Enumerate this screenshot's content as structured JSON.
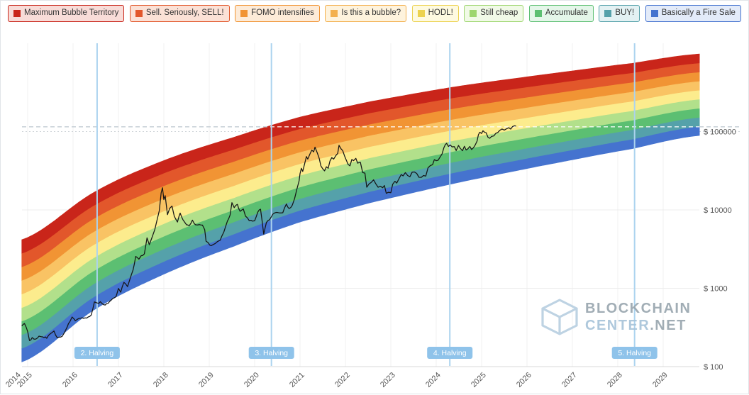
{
  "page": {
    "background": "#ffffff",
    "border_color": "#e1e4e8"
  },
  "legend": {
    "items": [
      {
        "id": "maximum-bubble-territory",
        "label": "Maximum Bubble Territory",
        "color": "#c9251a",
        "bg": "#f8dcd8"
      },
      {
        "id": "sell-seriously-sell",
        "label": "Sell. Seriously, SELL!",
        "color": "#e2572b",
        "bg": "#fbe1d6"
      },
      {
        "id": "fomo-intensifies",
        "label": "FOMO intensifies",
        "color": "#f19434",
        "bg": "#fdebd8"
      },
      {
        "id": "is-this-a-bubble",
        "label": "Is this a bubble?",
        "color": "#f3b04e",
        "bg": "#fef3dd"
      },
      {
        "id": "hodl",
        "label": "HODL!",
        "color": "#ecd24f",
        "bg": "#fefae0"
      },
      {
        "id": "still-cheap",
        "label": "Still cheap",
        "color": "#9ed66f",
        "bg": "#f1fae7"
      },
      {
        "id": "accumulate",
        "label": "Accumulate",
        "color": "#5cbf72",
        "bg": "#e4f6e9"
      },
      {
        "id": "buy",
        "label": "BUY!",
        "color": "#55a1aa",
        "bg": "#e3f1f3"
      },
      {
        "id": "basically-a-fire-sale",
        "label": "Basically a Fire Sale",
        "color": "#4573cf",
        "bg": "#e3ebf9"
      }
    ]
  },
  "axes": {
    "y_ticks": [
      {
        "label": "$ 100000",
        "value": 100000
      },
      {
        "label": "$ 10000",
        "value": 10000
      },
      {
        "label": "$ 1000",
        "value": 1000
      },
      {
        "label": "$ 100",
        "value": 100
      }
    ],
    "x_ticks": [
      {
        "label": "2014",
        "year": 2014.75
      },
      {
        "label": "2015",
        "year": 2015
      },
      {
        "label": "2016",
        "year": 2016
      },
      {
        "label": "2017",
        "year": 2017
      },
      {
        "label": "2018",
        "year": 2018
      },
      {
        "label": "2019",
        "year": 2019
      },
      {
        "label": "2020",
        "year": 2020
      },
      {
        "label": "2021",
        "year": 2021
      },
      {
        "label": "2022",
        "year": 2022
      },
      {
        "label": "2023",
        "year": 2023
      },
      {
        "label": "2024",
        "year": 2024
      },
      {
        "label": "2025",
        "year": 2025
      },
      {
        "label": "2026",
        "year": 2026
      },
      {
        "label": "2027",
        "year": 2027
      },
      {
        "label": "2028",
        "year": 2028
      },
      {
        "label": "2029",
        "year": 2029
      }
    ]
  },
  "halvings": [
    {
      "label": "2. Halving",
      "year": 2016.53
    },
    {
      "label": "3. Halving",
      "year": 2020.37
    },
    {
      "label": "4. Halving",
      "year": 2024.3
    },
    {
      "label": "5. Halving",
      "year": 2028.37
    }
  ],
  "halving_style": {
    "line_color": "#abd3ef",
    "badge_bg": "#8fc3ea",
    "badge_text_color": "#ffffff"
  },
  "watermark": {
    "line1": "BLOCKCHAIN",
    "line2_strong": "CENTER",
    "line2_suffix": ".NET"
  },
  "chart_data": {
    "type": "area",
    "y_axis": {
      "scale": "log",
      "ticks_usd": [
        100,
        1000,
        10000,
        100000
      ]
    },
    "x_domain_years": [
      2014.87,
      2029.8
    ],
    "dashed_reference_line_usd": 115000,
    "halving_years": [
      2016.53,
      2020.37,
      2024.3,
      2028.37
    ],
    "bands": {
      "count": 9,
      "labels_bottom_to_top": [
        "Basically a Fire Sale",
        "BUY!",
        "Accumulate",
        "Still cheap",
        "HODL!",
        "Is this a bubble?",
        "FOMO intensifies",
        "Sell. Seriously, SELL!",
        "Maximum Bubble Territory"
      ],
      "colors_bottom_to_top": [
        "#4573cf",
        "#55a1aa",
        "#5cbf72",
        "#b2e08b",
        "#fcec8d",
        "#f9c364",
        "#f19434",
        "#e2572b",
        "#c9251a"
      ],
      "upper_boundary_log10_usd": [
        [
          2014.87,
          3.62
        ],
        [
          2016.48,
          4.23
        ],
        [
          2018.0,
          4.63
        ],
        [
          2019.56,
          4.93
        ],
        [
          2020.97,
          5.18
        ],
        [
          2022.53,
          5.38
        ],
        [
          2024.41,
          5.57
        ],
        [
          2026.28,
          5.72
        ],
        [
          2028.31,
          5.87
        ],
        [
          2029.8,
          5.99
        ]
      ],
      "lower_boundary_log10_usd": [
        [
          2014.87,
          2.06
        ],
        [
          2016.48,
          2.73
        ],
        [
          2018.0,
          3.18
        ],
        [
          2019.56,
          3.54
        ],
        [
          2020.97,
          3.84
        ],
        [
          2022.53,
          4.09
        ],
        [
          2024.41,
          4.34
        ],
        [
          2026.28,
          4.56
        ],
        [
          2028.31,
          4.78
        ],
        [
          2029.8,
          4.95
        ]
      ]
    },
    "price_series_usd": [
      [
        2014.87,
        330
      ],
      [
        2014.93,
        355
      ],
      [
        2015.0,
        280
      ],
      [
        2015.04,
        215
      ],
      [
        2015.1,
        235
      ],
      [
        2015.18,
        225
      ],
      [
        2015.25,
        245
      ],
      [
        2015.33,
        240
      ],
      [
        2015.42,
        230
      ],
      [
        2015.5,
        263
      ],
      [
        2015.58,
        285
      ],
      [
        2015.65,
        235
      ],
      [
        2015.72,
        238
      ],
      [
        2015.8,
        265
      ],
      [
        2015.87,
        320
      ],
      [
        2015.93,
        375
      ],
      [
        2015.98,
        430
      ],
      [
        2016.05,
        385
      ],
      [
        2016.12,
        410
      ],
      [
        2016.2,
        420
      ],
      [
        2016.3,
        417
      ],
      [
        2016.4,
        455
      ],
      [
        2016.47,
        670
      ],
      [
        2016.53,
        650
      ],
      [
        2016.6,
        675
      ],
      [
        2016.68,
        615
      ],
      [
        2016.77,
        640
      ],
      [
        2016.85,
        715
      ],
      [
        2016.95,
        790
      ],
      [
        2017.0,
        995
      ],
      [
        2017.05,
        890
      ],
      [
        2017.12,
        1190
      ],
      [
        2017.2,
        1050
      ],
      [
        2017.25,
        1290
      ],
      [
        2017.32,
        1700
      ],
      [
        2017.38,
        2550
      ],
      [
        2017.45,
        2350
      ],
      [
        2017.5,
        2600
      ],
      [
        2017.57,
        2750
      ],
      [
        2017.63,
        4400
      ],
      [
        2017.68,
        3600
      ],
      [
        2017.73,
        4300
      ],
      [
        2017.8,
        5600
      ],
      [
        2017.85,
        7400
      ],
      [
        2017.9,
        9800
      ],
      [
        2017.94,
        16500
      ],
      [
        2017.97,
        19200
      ],
      [
        2018.0,
        13500
      ],
      [
        2018.03,
        15200
      ],
      [
        2018.08,
        8700
      ],
      [
        2018.13,
        10500
      ],
      [
        2018.18,
        11200
      ],
      [
        2018.23,
        8300
      ],
      [
        2018.3,
        7000
      ],
      [
        2018.36,
        9100
      ],
      [
        2018.42,
        7500
      ],
      [
        2018.5,
        6450
      ],
      [
        2018.56,
        6300
      ],
      [
        2018.63,
        7400
      ],
      [
        2018.7,
        6450
      ],
      [
        2018.78,
        6500
      ],
      [
        2018.85,
        6400
      ],
      [
        2018.9,
        5600
      ],
      [
        2018.93,
        4000
      ],
      [
        2018.98,
        3800
      ],
      [
        2019.04,
        3500
      ],
      [
        2019.1,
        3650
      ],
      [
        2019.17,
        3900
      ],
      [
        2019.24,
        4100
      ],
      [
        2019.32,
        5200
      ],
      [
        2019.4,
        7200
      ],
      [
        2019.46,
        8600
      ],
      [
        2019.5,
        12400
      ],
      [
        2019.55,
        10700
      ],
      [
        2019.62,
        11800
      ],
      [
        2019.68,
        9600
      ],
      [
        2019.75,
        10300
      ],
      [
        2019.8,
        8300
      ],
      [
        2019.88,
        7300
      ],
      [
        2019.95,
        7200
      ],
      [
        2020.0,
        7250
      ],
      [
        2020.07,
        9400
      ],
      [
        2020.13,
        10200
      ],
      [
        2020.2,
        4900
      ],
      [
        2020.26,
        6900
      ],
      [
        2020.33,
        7500
      ],
      [
        2020.4,
        8800
      ],
      [
        2020.48,
        9300
      ],
      [
        2020.55,
        9150
      ],
      [
        2020.62,
        9200
      ],
      [
        2020.7,
        11900
      ],
      [
        2020.76,
        10400
      ],
      [
        2020.83,
        11500
      ],
      [
        2020.88,
        13900
      ],
      [
        2020.93,
        18300
      ],
      [
        2020.98,
        23500
      ],
      [
        2021.0,
        29000
      ],
      [
        2021.03,
        34000
      ],
      [
        2021.06,
        31000
      ],
      [
        2021.1,
        38500
      ],
      [
        2021.14,
        48000
      ],
      [
        2021.17,
        44500
      ],
      [
        2021.22,
        52000
      ],
      [
        2021.26,
        58000
      ],
      [
        2021.3,
        55000
      ],
      [
        2021.33,
        63200
      ],
      [
        2021.38,
        53500
      ],
      [
        2021.42,
        46000
      ],
      [
        2021.46,
        36500
      ],
      [
        2021.5,
        33500
      ],
      [
        2021.54,
        31500
      ],
      [
        2021.58,
        35500
      ],
      [
        2021.62,
        34000
      ],
      [
        2021.66,
        42000
      ],
      [
        2021.7,
        46500
      ],
      [
        2021.74,
        44500
      ],
      [
        2021.79,
        49500
      ],
      [
        2021.83,
        52500
      ],
      [
        2021.86,
        66800
      ],
      [
        2021.9,
        60500
      ],
      [
        2021.94,
        57000
      ],
      [
        2021.98,
        49000
      ],
      [
        2022.02,
        43000
      ],
      [
        2022.06,
        38000
      ],
      [
        2022.1,
        36500
      ],
      [
        2022.14,
        44000
      ],
      [
        2022.18,
        42500
      ],
      [
        2022.23,
        45500
      ],
      [
        2022.27,
        39500
      ],
      [
        2022.33,
        40500
      ],
      [
        2022.38,
        30000
      ],
      [
        2022.43,
        29500
      ],
      [
        2022.47,
        19500
      ],
      [
        2022.52,
        21500
      ],
      [
        2022.57,
        22500
      ],
      [
        2022.62,
        24200
      ],
      [
        2022.67,
        21500
      ],
      [
        2022.72,
        19500
      ],
      [
        2022.77,
        20000
      ],
      [
        2022.82,
        19200
      ],
      [
        2022.86,
        20500
      ],
      [
        2022.9,
        16300
      ],
      [
        2022.95,
        16800
      ],
      [
        2023.0,
        16600
      ],
      [
        2023.04,
        21200
      ],
      [
        2023.09,
        23200
      ],
      [
        2023.13,
        22000
      ],
      [
        2023.18,
        25000
      ],
      [
        2023.23,
        28300
      ],
      [
        2023.27,
        27200
      ],
      [
        2023.32,
        29900
      ],
      [
        2023.37,
        27500
      ],
      [
        2023.42,
        26500
      ],
      [
        2023.47,
        30300
      ],
      [
        2023.52,
        30500
      ],
      [
        2023.57,
        29200
      ],
      [
        2023.62,
        26100
      ],
      [
        2023.67,
        26000
      ],
      [
        2023.72,
        27500
      ],
      [
        2023.77,
        27000
      ],
      [
        2023.82,
        34500
      ],
      [
        2023.87,
        36800
      ],
      [
        2023.92,
        37800
      ],
      [
        2023.96,
        43800
      ],
      [
        2024.0,
        42500
      ],
      [
        2024.04,
        43000
      ],
      [
        2024.09,
        47800
      ],
      [
        2024.13,
        52000
      ],
      [
        2024.17,
        62500
      ],
      [
        2024.2,
        68000
      ],
      [
        2024.23,
        70800
      ],
      [
        2024.27,
        64500
      ],
      [
        2024.31,
        67500
      ],
      [
        2024.35,
        63800
      ],
      [
        2024.4,
        64200
      ],
      [
        2024.44,
        57200
      ],
      [
        2024.49,
        66500
      ],
      [
        2024.53,
        61000
      ],
      [
        2024.58,
        57000
      ],
      [
        2024.62,
        64800
      ],
      [
        2024.66,
        58200
      ],
      [
        2024.7,
        60500
      ],
      [
        2024.74,
        64500
      ],
      [
        2024.78,
        59000
      ],
      [
        2024.82,
        62200
      ],
      [
        2024.86,
        67500
      ],
      [
        2024.9,
        75500
      ],
      [
        2024.93,
        91000
      ],
      [
        2024.96,
        98000
      ],
      [
        2025.0,
        94500
      ],
      [
        2025.03,
        102300
      ],
      [
        2025.07,
        97500
      ],
      [
        2025.1,
        96500
      ],
      [
        2025.14,
        84500
      ],
      [
        2025.18,
        82000
      ],
      [
        2025.22,
        86800
      ],
      [
        2025.27,
        88000
      ],
      [
        2025.31,
        94500
      ],
      [
        2025.36,
        97500
      ],
      [
        2025.4,
        103500
      ],
      [
        2025.45,
        107800
      ],
      [
        2025.5,
        104500
      ],
      [
        2025.55,
        108500
      ],
      [
        2025.6,
        111800
      ],
      [
        2025.64,
        107500
      ],
      [
        2025.68,
        115500
      ],
      [
        2025.72,
        118500
      ],
      [
        2025.76,
        117500
      ]
    ]
  }
}
